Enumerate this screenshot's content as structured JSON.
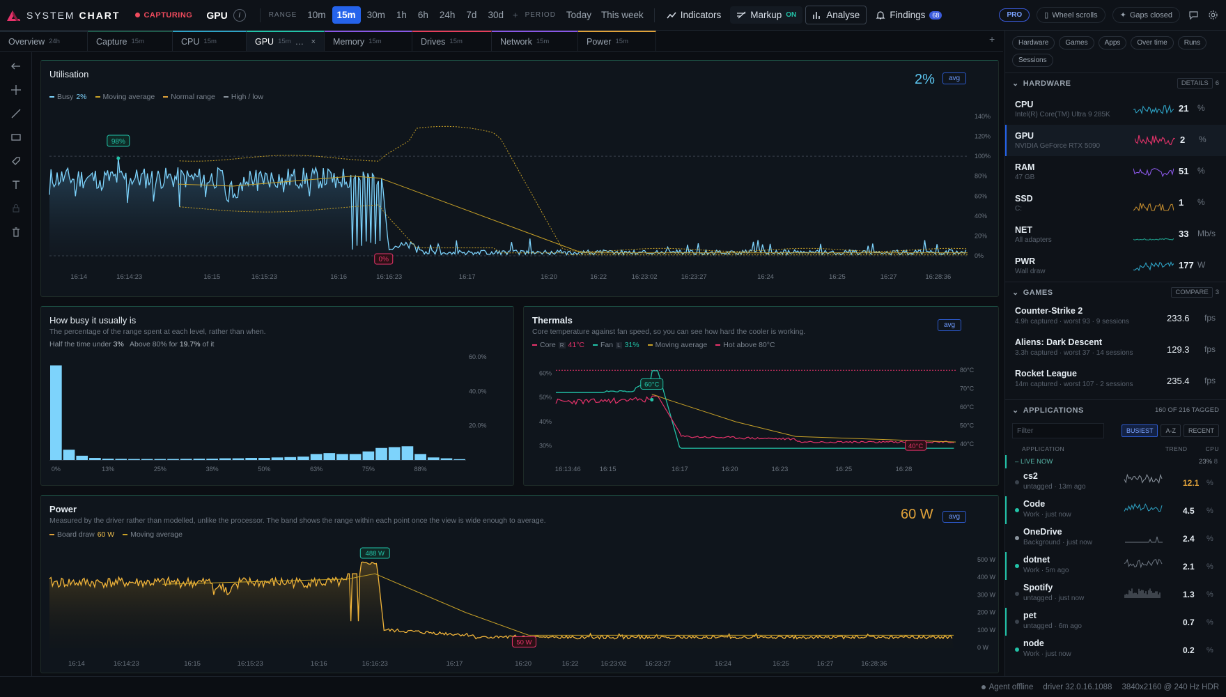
{
  "app": {
    "name_prefix": "SYSTEM ",
    "name_bold": "CHART",
    "capturing": "CAPTURING",
    "metric": "GPU",
    "info": "i"
  },
  "range": {
    "label": "RANGE",
    "options": [
      "10m",
      "15m",
      "30m",
      "1h",
      "6h",
      "24h",
      "7d",
      "30d"
    ],
    "selected": "15m"
  },
  "period": {
    "label": "PERIOD",
    "options": [
      "Today",
      "This week"
    ]
  },
  "toolbar": {
    "indicators": "Indicators",
    "markup": "Markup",
    "markup_state": "ON",
    "analyse": "Analyse",
    "findings": "Findings",
    "findings_count": "68"
  },
  "topright": {
    "pro": "PRO",
    "wheel": "Wheel scrolls",
    "gaps": "Gaps closed"
  },
  "tabs": [
    {
      "label": "Overview",
      "sub": "24h",
      "color": "#1f2933"
    },
    {
      "label": "Capture",
      "sub": "15m",
      "color": "#1f5a4a"
    },
    {
      "label": "CPU",
      "sub": "15m",
      "color": "#2ea2c4"
    },
    {
      "label": "GPU",
      "sub": "15m",
      "color": "#22c3a8",
      "active": true
    },
    {
      "label": "Memory",
      "sub": "15m",
      "color": "#8957e5"
    },
    {
      "label": "Drives",
      "sub": "15m",
      "color": "#e53e5a"
    },
    {
      "label": "Network",
      "sub": "15m",
      "color": "#8957e5"
    },
    {
      "label": "Power",
      "sub": "15m",
      "color": "#e0a23a"
    }
  ],
  "util": {
    "title": "Utilisation",
    "value": "2%",
    "avg": "avg",
    "legend": {
      "busy": "Busy",
      "busy_val": "2%",
      "ma": "Moving average",
      "normal": "Normal range",
      "hilo": "High / low"
    },
    "peak_label": "98%",
    "min_label": "0%",
    "y_ticks": [
      "140%",
      "120%",
      "100%",
      "80%",
      "60%",
      "40%",
      "20%",
      "0%"
    ],
    "x_ticks": [
      "16:14",
      "16:14:23",
      "16:15",
      "16:15:23",
      "16:16",
      "16:16:23",
      "16:17",
      "16:20",
      "16:22",
      "16:23:02",
      "16:23:27",
      "16:24",
      "16:25",
      "16:27",
      "16:28:36"
    ]
  },
  "hist": {
    "title": "How busy it usually is",
    "sub": "The percentage of the range spent at each level, rather than when.",
    "half_label": "Half the time under",
    "half_val": "3%",
    "above_label": "Above 80% for",
    "above_val": "19.7%",
    "above_suffix": "of it",
    "y_ticks": [
      "60.0%",
      "40.0%",
      "20.0%"
    ],
    "x_ticks": [
      "0%",
      "13%",
      "25%",
      "38%",
      "50%",
      "63%",
      "75%",
      "88%"
    ]
  },
  "thermals": {
    "title": "Thermals",
    "sub": "Core temperature against fan speed, so you can see how hard the cooler is working.",
    "avg": "avg",
    "legend": {
      "core": "Core",
      "core_tag": "R",
      "core_val": "41°C",
      "fan": "Fan",
      "fan_tag": "L",
      "fan_val": "31%",
      "ma": "Moving average",
      "hot": "Hot above 80°C"
    },
    "peak_label": "60°C",
    "min_label": "40°C",
    "left_ticks": [
      "60%",
      "50%",
      "40%",
      "30%"
    ],
    "right_ticks": [
      "80°C",
      "70°C",
      "60°C",
      "50°C",
      "40°C"
    ],
    "x_ticks": [
      "16:13:46",
      "16:15",
      "16:17",
      "16:20",
      "16:23",
      "16:25",
      "16:28"
    ]
  },
  "power": {
    "title": "Power",
    "sub": "Measured by the driver rather than modelled, unlike the processor. The band shows the range within each point once the view is wide enough to average.",
    "value": "60 W",
    "avg": "avg",
    "legend": {
      "draw": "Board draw",
      "draw_val": "60 W",
      "ma": "Moving average"
    },
    "peak_label": "488 W",
    "min_label": "50 W",
    "y_ticks": [
      "500 W",
      "400 W",
      "300 W",
      "200 W",
      "100 W",
      "0 W"
    ],
    "x_ticks": [
      "16:14",
      "16:14:23",
      "16:15",
      "16:15:23",
      "16:16",
      "16:16:23",
      "16:17",
      "16:20",
      "16:22",
      "16:23:02",
      "16:23:27",
      "16:24",
      "16:25",
      "16:27",
      "16:28:36"
    ]
  },
  "chart_data": [
    {
      "type": "line",
      "title": "Utilisation",
      "ylim": [
        0,
        140
      ],
      "series": [
        {
          "name": "Busy",
          "summary_last": 2,
          "peak": 98,
          "min": 0
        },
        {
          "name": "Moving average"
        },
        {
          "name": "Normal range"
        },
        {
          "name": "High / low"
        }
      ]
    },
    {
      "type": "bar",
      "title": "How busy it usually is",
      "categories": [
        "0%",
        "3%",
        "6%",
        "9%",
        "13%",
        "16%",
        "19%",
        "22%",
        "25%",
        "28%",
        "31%",
        "34%",
        "38%",
        "41%",
        "44%",
        "47%",
        "50%",
        "53%",
        "56%",
        "59%",
        "63%",
        "66%",
        "69%",
        "72%",
        "75%",
        "78%",
        "81%",
        "84%",
        "88%",
        "91%",
        "94%",
        "97%"
      ],
      "values": [
        55,
        6,
        2.5,
        1.2,
        0.8,
        0.7,
        0.6,
        0.6,
        0.6,
        0.6,
        0.7,
        0.8,
        0.8,
        1,
        1,
        1.2,
        1.2,
        1.5,
        1.7,
        2,
        3.5,
        4,
        3.5,
        3.5,
        5,
        7,
        7.5,
        8,
        3.5,
        1.5,
        1,
        0.5
      ],
      "ylim": [
        0,
        60
      ]
    },
    {
      "type": "line",
      "title": "Thermals",
      "series": [
        {
          "name": "Core",
          "last": 41,
          "peak": 60,
          "min": 40
        },
        {
          "name": "Fan",
          "last": 31
        },
        {
          "name": "Moving average"
        },
        {
          "name": "Hot above 80°C"
        }
      ]
    },
    {
      "type": "line",
      "title": "Power",
      "ylim": [
        0,
        500
      ],
      "series": [
        {
          "name": "Board draw",
          "last": 60,
          "peak": 488,
          "min": 50
        },
        {
          "name": "Moving average"
        }
      ]
    }
  ],
  "right": {
    "chips": [
      "Hardware",
      "Games",
      "Apps",
      "Over time",
      "Runs",
      "Sessions"
    ],
    "hardware": {
      "title": "HARDWARE",
      "details": "DETAILS",
      "count": "6",
      "items": [
        {
          "name": "CPU",
          "desc": "Intel(R) Core(TM) Ultra 9 285K",
          "value": "21",
          "unit": "%",
          "color": "#2ea2c4"
        },
        {
          "name": "GPU",
          "desc": "NVIDIA GeForce RTX 5090",
          "value": "2",
          "unit": "%",
          "color": "#e8336b"
        },
        {
          "name": "RAM",
          "desc": "47 GB",
          "value": "51",
          "unit": "%",
          "color": "#8957e5"
        },
        {
          "name": "SSD",
          "desc": "C:",
          "value": "1",
          "unit": "%",
          "color": "#c08a2e"
        },
        {
          "name": "NET",
          "desc": "All adapters",
          "value": "33",
          "unit": "Mb/s",
          "color": "#1f9c8a"
        },
        {
          "name": "PWR",
          "desc": "Wall draw",
          "value": "177",
          "unit": "W",
          "color": "#2ea2c4"
        }
      ]
    },
    "games": {
      "title": "GAMES",
      "compare": "COMPARE",
      "count": "3",
      "items": [
        {
          "name": "Counter-Strike 2",
          "desc": "4.9h captured · worst 93 · 9 sessions",
          "value": "233.6",
          "unit": "fps"
        },
        {
          "name": "Aliens: Dark Descent",
          "desc": "3.3h captured · worst 37 · 14 sessions",
          "value": "129.3",
          "unit": "fps"
        },
        {
          "name": "Rocket League",
          "desc": "14m captured · worst 107 · 2 sessions",
          "value": "235.4",
          "unit": "fps"
        }
      ]
    },
    "apps": {
      "title": "APPLICATIONS",
      "tagged": "160 OF 216 TAGGED",
      "filter_placeholder": "Filter",
      "sort": [
        "BUSIEST",
        "A-Z",
        "RECENT"
      ],
      "cols": {
        "app": "APPLICATION",
        "trend": "TREND",
        "cpu": "CPU"
      },
      "live": {
        "label": "LIVE NOW",
        "pct": "23%",
        "count": "8"
      },
      "items": [
        {
          "name": "cs2",
          "desc": "untagged · 13m ago",
          "value": "12.1",
          "unit": "%",
          "dot": "#3a424c",
          "vcolor": "#e0a23a"
        },
        {
          "name": "Code",
          "desc": "Work · just now",
          "value": "4.5",
          "unit": "%",
          "dot": "#22c3a8",
          "vcolor": "#e6edf3"
        },
        {
          "name": "OneDrive",
          "desc": "Background · just now",
          "value": "2.4",
          "unit": "%",
          "dot": "#8b949e",
          "vcolor": "#e6edf3"
        },
        {
          "name": "dotnet",
          "desc": "Work · 5m ago",
          "value": "2.1",
          "unit": "%",
          "dot": "#22c3a8",
          "vcolor": "#e6edf3"
        },
        {
          "name": "Spotify",
          "desc": "untagged · just now",
          "value": "1.3",
          "unit": "%",
          "dot": "#3a424c",
          "vcolor": "#e6edf3"
        },
        {
          "name": "pet",
          "desc": "untagged · 6m ago",
          "value": "0.7",
          "unit": "%",
          "dot": "#3a424c",
          "vcolor": "#e6edf3"
        },
        {
          "name": "node",
          "desc": "Work · just now",
          "value": "0.2",
          "unit": "%",
          "dot": "#22c3a8",
          "vcolor": "#e6edf3"
        }
      ]
    }
  },
  "status": {
    "agent": "Agent offline",
    "driver": "driver 32.0.16.1088",
    "display": "3840x2160 @ 240 Hz HDR"
  }
}
